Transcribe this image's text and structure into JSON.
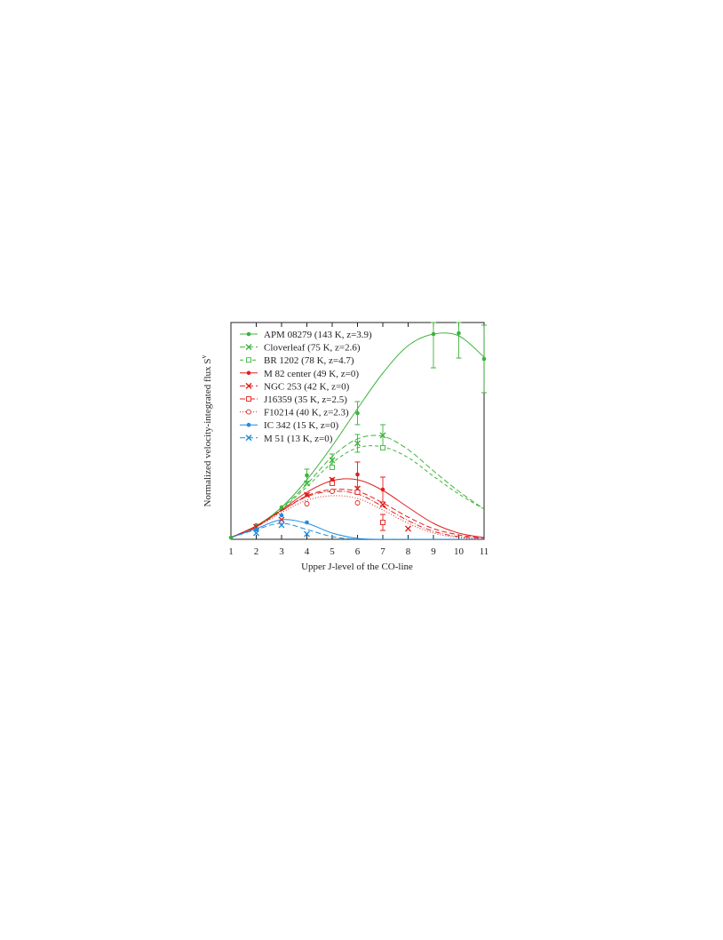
{
  "chart_data": {
    "type": "line",
    "xlabel": "Upper J-level of the CO-line",
    "ylabel": "Normalized velocity-integrated flux S",
    "ylabel_sup": "v",
    "x": [
      1,
      2,
      3,
      4,
      5,
      6,
      7,
      8,
      9,
      10,
      11
    ],
    "xlim": [
      1,
      11
    ],
    "xticks": [
      1,
      2,
      3,
      4,
      5,
      6,
      7,
      8,
      9,
      10,
      11
    ],
    "ylim": [
      0,
      1.22
    ],
    "legend": "upper left",
    "series": [
      {
        "name": "APM 08279 (143 K, z=3.9)",
        "color": "#3cb43c",
        "dash": "solid",
        "marker": "circle-filled",
        "values": [
          0.01,
          0.08,
          0.18,
          0.36,
          null,
          0.71,
          null,
          null,
          1.155,
          1.16,
          1.015
        ],
        "errors": [
          null,
          null,
          null,
          0.035,
          null,
          0.065,
          null,
          null,
          0.19,
          0.14,
          0.19
        ],
        "model": [
          0.01,
          0.075,
          0.18,
          0.335,
          0.525,
          0.735,
          0.935,
          1.09,
          1.155,
          1.145,
          1.025
        ]
      },
      {
        "name": "Cloverleaf (75 K, z=2.6)",
        "color": "#3cb43c",
        "dash": "6,3",
        "marker": "x",
        "values": [
          null,
          null,
          null,
          0.315,
          0.445,
          0.54,
          0.585,
          null,
          null,
          null,
          null
        ],
        "errors": [
          null,
          null,
          null,
          null,
          0.035,
          0.05,
          0.06,
          null,
          null,
          null,
          null
        ],
        "model": [
          0.01,
          0.075,
          0.175,
          0.31,
          0.465,
          0.565,
          0.58,
          0.505,
          0.385,
          0.27,
          0.17
        ]
      },
      {
        "name": "BR 1202 (78 K, z=4.7)",
        "color": "#3cb43c",
        "dash": "4,3",
        "marker": "square-open",
        "values": [
          null,
          null,
          null,
          null,
          0.405,
          null,
          0.515,
          null,
          null,
          null,
          null
        ],
        "errors": [
          null,
          null,
          null,
          null,
          null,
          null,
          null,
          null,
          null,
          null,
          null
        ],
        "model": [
          0.01,
          0.075,
          0.17,
          0.295,
          0.43,
          0.515,
          0.52,
          0.46,
          0.355,
          0.255,
          0.17
        ]
      },
      {
        "name": "M 82 center (49 K, z=0)",
        "color": "#e0201c",
        "dash": "solid",
        "marker": "circle-filled",
        "values": [
          null,
          null,
          null,
          0.25,
          0.335,
          0.365,
          0.28,
          null,
          null,
          null,
          null
        ],
        "errors": [
          null,
          null,
          null,
          null,
          null,
          0.07,
          0.07,
          null,
          null,
          null,
          null
        ],
        "model": [
          0.01,
          0.075,
          0.165,
          0.265,
          0.33,
          0.335,
          0.275,
          0.18,
          0.09,
          0.035,
          0.01
        ]
      },
      {
        "name": "NGC 253 (42 K, z=0)",
        "color": "#e0201c",
        "dash": "6,3",
        "marker": "x",
        "values": [
          null,
          0.07,
          0.11,
          0.25,
          0.335,
          0.285,
          0.195,
          0.06,
          null,
          null,
          null
        ],
        "errors": [
          null,
          null,
          null,
          null,
          null,
          null,
          null,
          null,
          null,
          null,
          null
        ],
        "model": [
          0.01,
          0.075,
          0.16,
          0.245,
          0.28,
          0.27,
          0.205,
          0.125,
          0.06,
          0.025,
          0.005
        ]
      },
      {
        "name": "J16359 (35 K, z=2.5)",
        "color": "#e0201c",
        "dash": "6,2,1,2",
        "marker": "square-open",
        "values": [
          null,
          null,
          null,
          null,
          0.315,
          0.265,
          0.095,
          null,
          null,
          null,
          null
        ],
        "errors": [
          null,
          null,
          null,
          null,
          null,
          null,
          0.045,
          null,
          null,
          null,
          null
        ],
        "model": [
          0.01,
          0.07,
          0.16,
          0.24,
          0.27,
          0.255,
          0.185,
          0.105,
          0.045,
          0.015,
          0.005
        ]
      },
      {
        "name": "F10214 (40 K, z=2.3)",
        "color": "#e0201c",
        "dash": "1,2",
        "marker": "circle-open",
        "values": [
          null,
          null,
          null,
          0.2,
          0.27,
          0.205,
          null,
          null,
          null,
          null,
          null
        ],
        "errors": [
          null,
          null,
          null,
          null,
          null,
          null,
          null,
          null,
          null,
          null,
          null
        ],
        "model": [
          0.01,
          0.07,
          0.15,
          0.22,
          0.245,
          0.23,
          0.165,
          0.09,
          0.035,
          0.01,
          0
        ]
      },
      {
        "name": "IC 342 (15 K, z=0)",
        "color": "#1e8ce0",
        "dash": "solid",
        "marker": "circle-filled",
        "values": [
          null,
          0.055,
          0.135,
          0.095,
          null,
          null,
          null,
          null,
          null,
          null,
          null
        ],
        "errors": [
          null,
          null,
          null,
          null,
          null,
          null,
          null,
          null,
          null,
          null,
          null
        ],
        "model": [
          0.01,
          0.06,
          0.11,
          0.09,
          0.035,
          0.005,
          0,
          0,
          0,
          0,
          0
        ]
      },
      {
        "name": "M 51 (13 K, z=0)",
        "color": "#1e8ce0",
        "dash": "6,3",
        "marker": "x",
        "values": [
          null,
          0.035,
          0.08,
          0.03,
          null,
          null,
          null,
          null,
          null,
          null,
          null
        ],
        "errors": [
          null,
          null,
          null,
          null,
          null,
          null,
          null,
          null,
          null,
          null,
          null
        ],
        "model": [
          0.01,
          0.055,
          0.09,
          0.055,
          0.015,
          0,
          0,
          0,
          0,
          0,
          0
        ]
      }
    ]
  }
}
